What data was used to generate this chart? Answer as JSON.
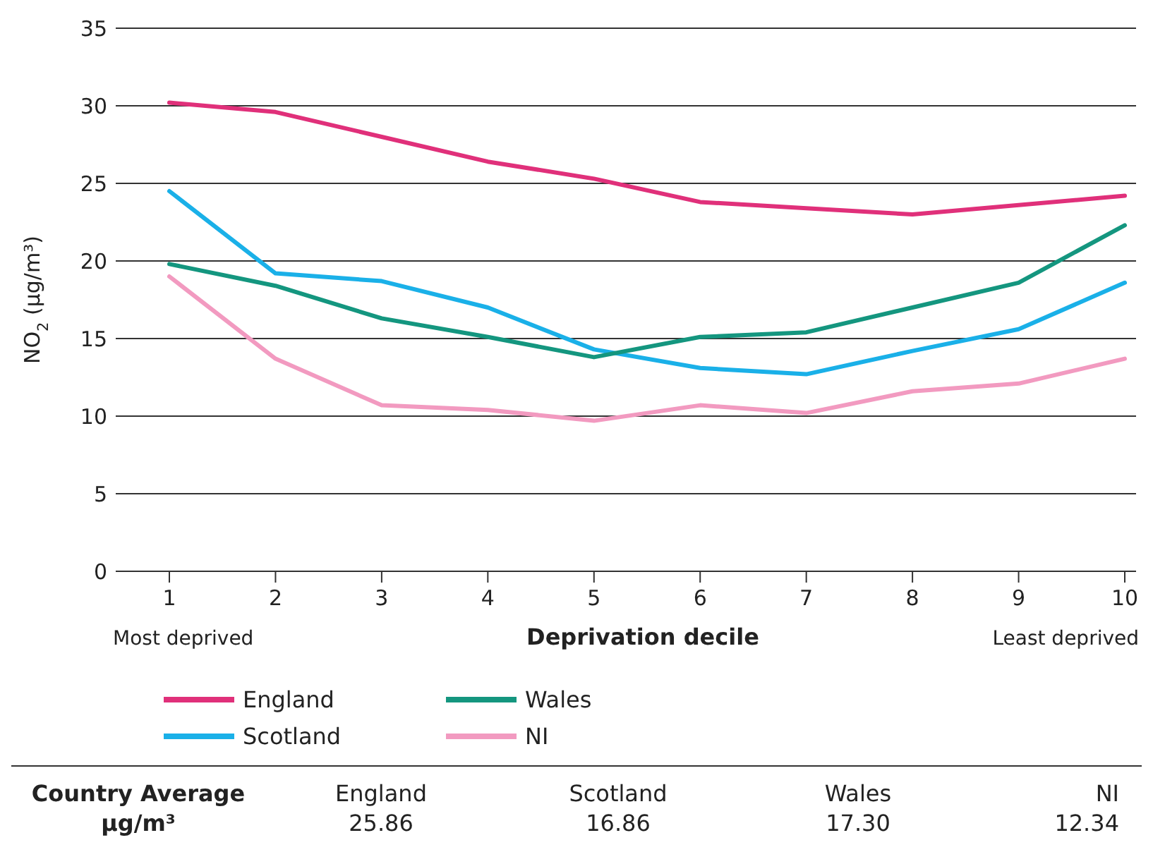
{
  "chart_data": {
    "type": "line",
    "xlabel": "Deprivation decile",
    "ylabel": "NO$_{2}$ (µg/m³)",
    "categories": [
      "1",
      "2",
      "3",
      "4",
      "5",
      "6",
      "7",
      "8",
      "9",
      "10"
    ],
    "series": [
      {
        "name": "England",
        "color": "#e0307a",
        "values": [
          30.2,
          29.6,
          28.0,
          26.4,
          25.3,
          23.8,
          23.4,
          23.0,
          23.6,
          24.2
        ]
      },
      {
        "name": "Scotland",
        "color": "#1ab0e8",
        "values": [
          24.5,
          19.2,
          18.7,
          17.0,
          14.3,
          13.1,
          12.7,
          14.2,
          15.6,
          18.6
        ]
      },
      {
        "name": "Wales",
        "color": "#14967f",
        "values": [
          19.8,
          18.4,
          16.3,
          15.1,
          13.8,
          15.1,
          15.4,
          17.0,
          18.6,
          22.3
        ]
      },
      {
        "name": "NI",
        "color": "#f29ac0",
        "values": [
          19.0,
          13.7,
          10.7,
          10.4,
          9.7,
          10.7,
          10.2,
          11.6,
          12.1,
          13.7
        ]
      }
    ],
    "ylim": [
      0,
      35
    ],
    "yticks": [
      0,
      5,
      10,
      15,
      20,
      25,
      30,
      35
    ],
    "grid": "y",
    "legend": "bottom left",
    "marker": "none",
    "line_style": "solid",
    "annotations": [
      "Most deprived",
      "Least deprived",
      "Country Average",
      "µg/m³",
      "England",
      "25.86",
      "Scotland",
      "16.86",
      "Wales",
      "17.30",
      "NI",
      "12.34"
    ]
  }
}
